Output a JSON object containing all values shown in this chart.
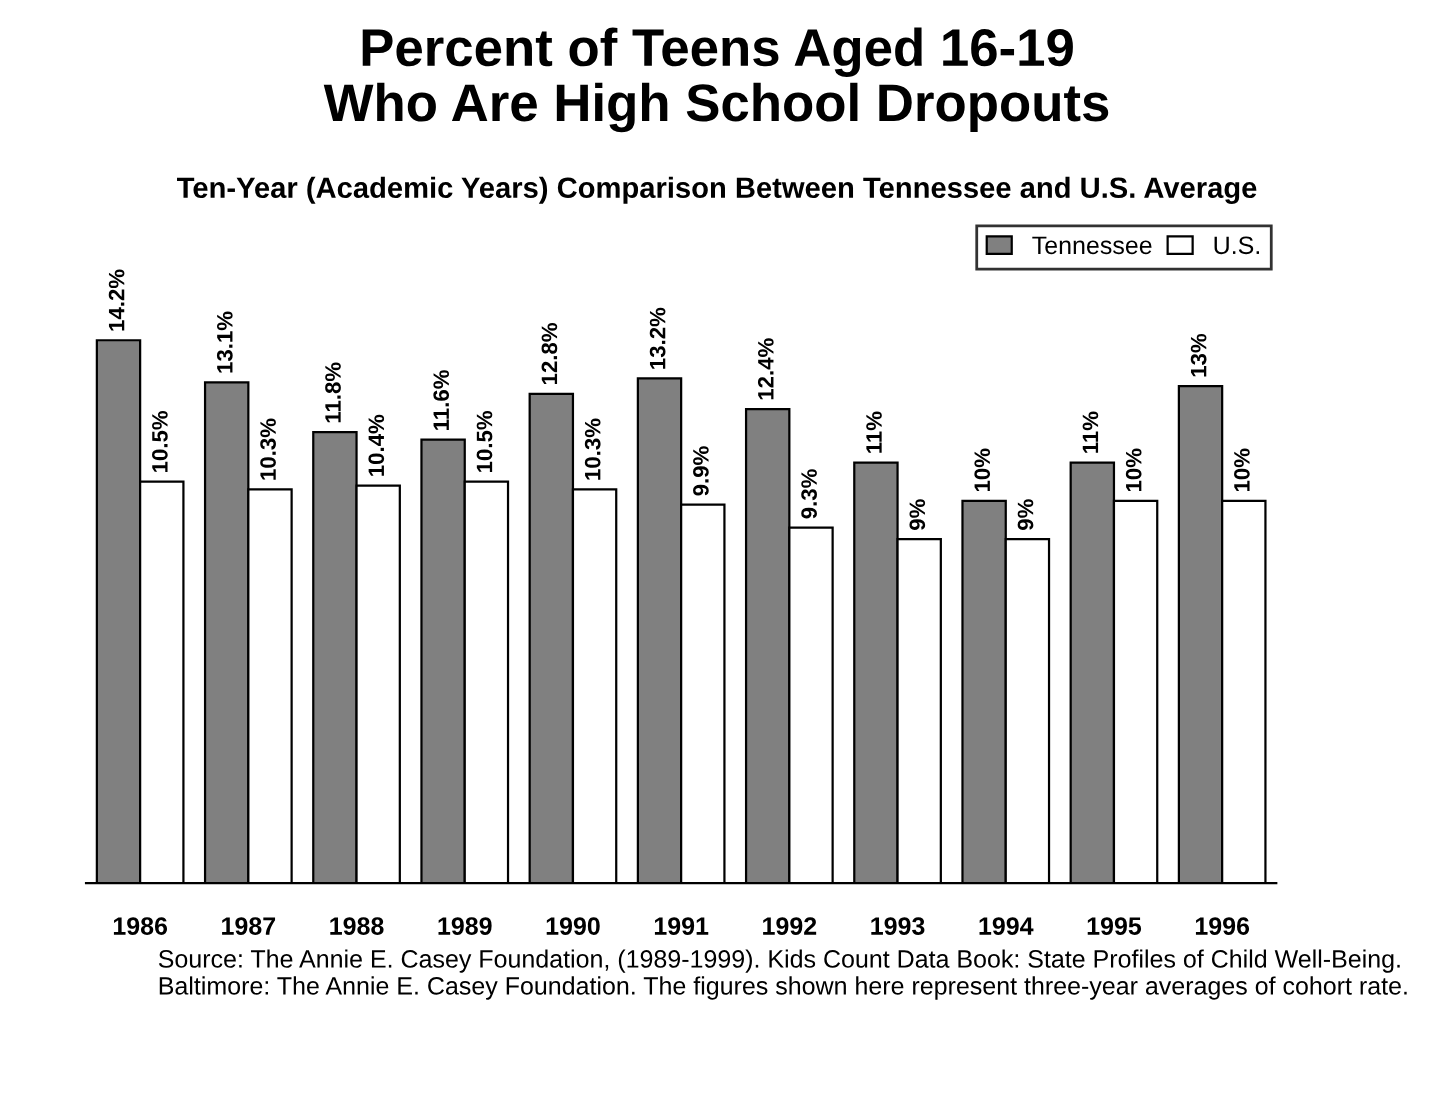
{
  "chart_data": {
    "type": "bar",
    "title": "Percent of Teens Aged 16-19\nWho Are High School Dropouts",
    "subtitle": "Ten-Year (Academic Years) Comparison Between Tennessee and U.S. Average",
    "categories": [
      "1986",
      "1987",
      "1988",
      "1989",
      "1990",
      "1991",
      "1992",
      "1993",
      "1994",
      "1995",
      "1996"
    ],
    "series": [
      {
        "name": "Tennessee",
        "color": "#808080",
        "values": [
          14.2,
          13.1,
          11.8,
          11.6,
          12.8,
          13.2,
          12.4,
          11,
          10,
          11,
          13
        ],
        "value_labels": [
          "14.2%",
          "13.1%",
          "11.8%",
          "11.6%",
          "12.8%",
          "13.2%",
          "12.4%",
          "11%",
          "10%",
          "11%",
          "13%"
        ]
      },
      {
        "name": "U.S.",
        "color": "#ffffff",
        "values": [
          10.5,
          10.3,
          10.4,
          10.5,
          10.3,
          9.9,
          9.3,
          9,
          9,
          10,
          10
        ],
        "value_labels": [
          "10.5%",
          "10.3%",
          "10.4%",
          "10.5%",
          "10.3%",
          "9.9%",
          "9.3%",
          "9%",
          "9%",
          "10%",
          "10%"
        ]
      }
    ],
    "legend": "top right",
    "grid": false,
    "annotations": [
      "Source: The Annie E. Casey Foundation, (1989-1999). Kids Count Data Book: State Profiles of Child Well-Being. Baltimore: The Annie E. Casey Foundation. The figures shown here represent three-year averages of cohort rate."
    ]
  }
}
